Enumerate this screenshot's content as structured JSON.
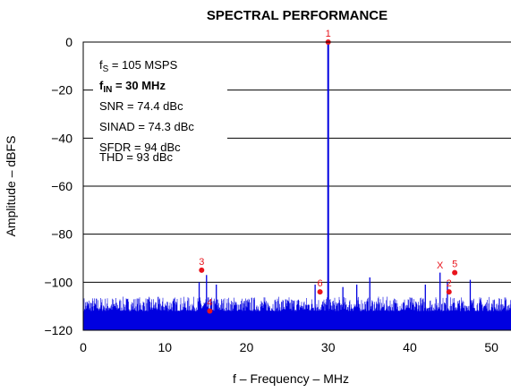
{
  "chart_data": {
    "type": "line",
    "title": "SPECTRAL PERFORMANCE",
    "xlabel": "f – Frequency – MHz",
    "ylabel": "Amplitude – dBFS",
    "xlim": [
      0,
      52.5
    ],
    "ylim": [
      -120,
      0
    ],
    "xticks": [
      "0",
      "10",
      "20",
      "30",
      "40",
      "50"
    ],
    "yticks": [
      "0",
      "−20",
      "−40",
      "−60",
      "−80",
      "−100",
      "−120"
    ],
    "grid": "horizontal",
    "series_color": "#0000e0",
    "marker_color": "#e8141c",
    "noise_floor_dbfs": [
      -112,
      -106
    ],
    "spurs": [
      {
        "x": 14.2,
        "y": -100
      },
      {
        "x": 15.1,
        "y": -97
      },
      {
        "x": 16.3,
        "y": -101
      },
      {
        "x": 28.4,
        "y": -101
      },
      {
        "x": 31.8,
        "y": -102
      },
      {
        "x": 33.5,
        "y": -101
      },
      {
        "x": 35.1,
        "y": -98
      },
      {
        "x": 41.9,
        "y": -101
      },
      {
        "x": 43.7,
        "y": -96
      },
      {
        "x": 44.6,
        "y": -100
      },
      {
        "x": 47.4,
        "y": -99
      }
    ],
    "markers": [
      {
        "label": "1",
        "x": 30.0,
        "y": 0
      },
      {
        "label": "3",
        "x": 14.5,
        "y": -95
      },
      {
        "label": "4",
        "x": 15.5,
        "y": -112
      },
      {
        "label": "6",
        "x": 29.0,
        "y": -104
      },
      {
        "label": "X",
        "x": 43.7,
        "y": -95
      },
      {
        "label": "2",
        "x": 44.8,
        "y": -104
      },
      {
        "label": "5",
        "x": 45.5,
        "y": -96
      }
    ]
  },
  "annotations": {
    "fs": {
      "prefix": "f",
      "sub": "S",
      "text": " = 105 MSPS"
    },
    "fin": {
      "prefix": "f",
      "sub": "IN",
      "text": " = 30 MHz"
    },
    "snr": "SNR = 74.4 dBc",
    "sinad": "SINAD = 74.3 dBc",
    "sfdr": "SFDR = 94 dBc",
    "thd": "THD = 93 dBc"
  }
}
